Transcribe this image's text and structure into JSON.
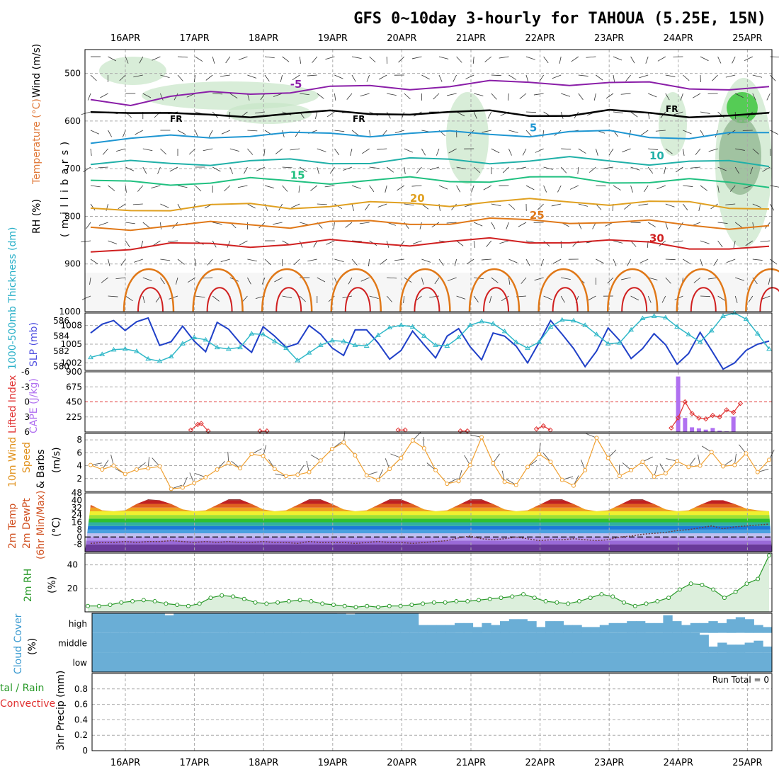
{
  "title": "GFS 0~10day 3-hourly for TAHOUA (5.25E, 15N)",
  "dates": [
    "16APR",
    "17APR",
    "18APR",
    "19APR",
    "20APR",
    "21APR",
    "22APR",
    "23APR",
    "24APR",
    "25APR"
  ],
  "colors": {
    "temp_contours": [
      "#8a1ea8",
      "#2a4ec8",
      "#1e96d2",
      "#20b0a8",
      "#20c080",
      "#e0a020",
      "#e07818",
      "#d02020"
    ],
    "slp": "#2040c8",
    "thickness": "#30b8c8",
    "lifted_index": "#e03030",
    "cape": "#b070f0",
    "wind10m": "#f0a030",
    "rh2m": "#2a9a2a",
    "cloud": "#6aaed6",
    "rh_shading": "#c8e6c8"
  },
  "chart_data": [
    {
      "id": "upper",
      "type": "area",
      "ylabel": "millibars",
      "side_labels": {
        "rh": "RH (%)",
        "temp": "Temperature (°C)",
        "wind": "Wind (m/s)"
      },
      "ylim": [
        1000,
        450
      ],
      "y_ticks": [
        500,
        600,
        700,
        800,
        900,
        1000
      ],
      "temperature_contours": [
        {
          "label": "-5",
          "level_hpa": [
            555,
            560,
            550,
            545,
            540,
            535,
            532,
            530,
            528,
            525,
            522,
            520,
            518,
            520,
            525,
            530,
            528,
            532
          ],
          "label_pos": "21APR"
        },
        {
          "label": "0 (FR)",
          "level_hpa": [
            575,
            580,
            590,
            588,
            585,
            585,
            585,
            583,
            580,
            585,
            583,
            584,
            585,
            583,
            585,
            585,
            588,
            590
          ]
        },
        {
          "label": "5",
          "level_hpa": [
            640,
            640,
            635,
            630,
            628,
            630,
            628,
            626,
            625,
            628,
            627,
            626,
            625,
            626,
            630,
            632,
            630,
            628
          ]
        },
        {
          "label": "10",
          "level_hpa": [
            690,
            690,
            688,
            686,
            686,
            686,
            685,
            684,
            683,
            684,
            683,
            682,
            682,
            684,
            685,
            686,
            690,
            692
          ]
        },
        {
          "label": "15",
          "level_hpa": [
            730,
            730,
            728,
            728,
            726,
            726,
            725,
            726,
            724,
            724,
            722,
            722,
            722,
            724,
            726,
            728,
            730,
            732
          ]
        },
        {
          "label": "20",
          "level_hpa": [
            790,
            785,
            782,
            780,
            778,
            778,
            776,
            776,
            774,
            772,
            770,
            770,
            768,
            770,
            772,
            775,
            778,
            780
          ]
        },
        {
          "label": "25",
          "level_hpa": [
            825,
            822,
            820,
            818,
            816,
            818,
            814,
            815,
            812,
            812,
            810,
            810,
            808,
            812,
            815,
            818,
            820,
            822
          ]
        },
        {
          "label": "30",
          "level_hpa": [
            870,
            865,
            862,
            860,
            858,
            858,
            856,
            856,
            855,
            855,
            852,
            852,
            850,
            855,
            858,
            862,
            866,
            870
          ]
        }
      ],
      "notes": [
        "FR"
      ]
    },
    {
      "id": "slp-thickness",
      "type": "line",
      "ylabel_left": "1000-500mb Thickness (dm)",
      "ylabel_right": "SLP (mb)",
      "thickness_ticks": [
        580,
        582,
        584,
        586
      ],
      "slp_ticks": [
        1002,
        1005,
        1008
      ],
      "thickness_lim": [
        579.5,
        587
      ],
      "series": [
        {
          "name": "SLP (mb)",
          "values": [
            1006.8,
            1008.2,
            1008.8,
            1007.2,
            1008.6,
            1009.2,
            1004.8,
            1005.4,
            1007.9,
            1005.5,
            1003.8,
            1008.5,
            1007.4,
            1005.2,
            1003.7,
            1007.8,
            1006.3,
            1004.5,
            1005.1,
            1008.0,
            1006.6,
            1004.4,
            1003.2,
            1007.3,
            1007.3,
            1005.2,
            1002.6,
            1004.0,
            1007.1,
            1004.9,
            1002.8,
            1006.3,
            1007.5,
            1004.6,
            1002.5,
            1006.8,
            1006.3,
            1004.7,
            1002.0,
            1005.3,
            1008.8,
            1006.6,
            1004.3,
            1001.4,
            1003.9,
            1007.6,
            1005.6,
            1002.7,
            1004.3,
            1006.7,
            1004.9,
            1001.8,
            1003.5,
            1006.9,
            1004.0,
            1001.0,
            1002.0,
            1004.0,
            1005.0,
            1005.5
          ],
          "axis": "right"
        },
        {
          "name": "1000-500mb Thickness (dm)",
          "values": [
            581.2,
            581.6,
            582.2,
            582.3,
            582.0,
            581.0,
            580.7,
            581.3,
            583.0,
            583.8,
            583.5,
            582.5,
            582.3,
            582.5,
            584.3,
            584.2,
            583.3,
            582.4,
            580.8,
            581.8,
            582.8,
            583.4,
            583.3,
            582.8,
            582.7,
            584.1,
            585.1,
            585.4,
            585.2,
            584.0,
            582.8,
            582.7,
            583.8,
            585.4,
            585.9,
            585.6,
            584.6,
            583.2,
            582.4,
            583.2,
            585.2,
            586.1,
            586.0,
            585.4,
            584.2,
            583.0,
            583.1,
            584.8,
            586.3,
            586.6,
            586.4,
            585.2,
            584.2,
            583.2,
            584.7,
            586.6,
            587.0,
            586.2,
            584.3,
            582.3
          ],
          "axis": "left"
        }
      ]
    },
    {
      "id": "li-cape",
      "type": "bar",
      "ylabel_left": "Lifted Index",
      "ylabel_right": "CAPE (J/kg)",
      "li_ticks": [
        -6,
        -3,
        0,
        3,
        6
      ],
      "cape_ticks": [
        225,
        450,
        675,
        900
      ],
      "li_lim": [
        6,
        -6
      ],
      "cape_lim": [
        0,
        900
      ],
      "series": [
        {
          "name": "Lifted Index",
          "segments": [
            {
              "x": [
                1.45,
                1.55,
                1.6,
                1.7
              ],
              "values": [
                5.6,
                4.5,
                4.3,
                5.8
              ]
            },
            {
              "x": [
                2.45,
                2.55
              ],
              "values": [
                5.8,
                5.8
              ]
            },
            {
              "x": [
                4.45,
                4.55
              ],
              "values": [
                5.6,
                5.6
              ]
            },
            {
              "x": [
                5.35,
                5.45
              ],
              "values": [
                5.8,
                5.8
              ]
            },
            {
              "x": [
                6.45,
                6.55,
                6.65
              ],
              "values": [
                5.4,
                4.8,
                5.6
              ]
            },
            {
              "x": [
                8.4,
                8.5,
                8.6,
                8.7,
                8.8,
                8.9,
                9.0,
                9.1,
                9.2,
                9.3,
                9.4
              ],
              "values": [
                5.2,
                3.2,
                0.0,
                2.3,
                3.2,
                3.4,
                2.7,
                3.0,
                1.6,
                2.1,
                0.3
              ]
            }
          ]
        },
        {
          "name": "CAPE (J/kg)",
          "x": [
            8.5,
            8.6,
            8.7,
            8.8,
            8.9,
            9.0,
            9.1,
            9.2,
            9.3
          ],
          "values": [
            830,
            210,
            70,
            55,
            35,
            60,
            20,
            10,
            230
          ]
        }
      ]
    },
    {
      "id": "wind10m",
      "type": "line",
      "ylabel": "10m Wind Speed & Barbs (m/s)",
      "ylim": [
        0,
        9
      ],
      "y_ticks": [
        2,
        4,
        6,
        8
      ],
      "series": [
        {
          "name": "Speed",
          "values": [
            4.1,
            3.4,
            4.0,
            2.7,
            3.4,
            3.6,
            3.9,
            0.4,
            0.6,
            1.3,
            2.2,
            3.4,
            4.4,
            3.6,
            5.8,
            5.5,
            3.5,
            2.4,
            2.6,
            3.0,
            4.8,
            6.6,
            7.6,
            5.6,
            2.5,
            1.8,
            3.5,
            5.2,
            7.9,
            6.7,
            3.3,
            1.2,
            1.6,
            4.1,
            8.4,
            4.4,
            1.5,
            1.0,
            3.8,
            5.8,
            4.6,
            1.8,
            0.9,
            3.3,
            8.3,
            5.2,
            2.4,
            3.3,
            4.6,
            2.3,
            2.8,
            4.7,
            3.8,
            4.0,
            6.1,
            3.9,
            4.1,
            5.9,
            3.0,
            4.9
          ]
        }
      ]
    },
    {
      "id": "temp2m",
      "type": "area",
      "ylabel": "2m Temp 2m DewPt (6hr Min/Max) (°C)",
      "ylim": [
        -16,
        48
      ],
      "y_ticks": [
        -8,
        0,
        8,
        16,
        24,
        32,
        40,
        48
      ],
      "series": [
        {
          "name": "2m Temp",
          "values": [
            35,
            29,
            28,
            29,
            36,
            41,
            40,
            36,
            30,
            28,
            29,
            35,
            41,
            41,
            36,
            30,
            28,
            29,
            35,
            41,
            41,
            36,
            30,
            28,
            29,
            35,
            41,
            41,
            36,
            30,
            28,
            29,
            35,
            41,
            41,
            36,
            30,
            28,
            29,
            35,
            41,
            41,
            36,
            30,
            28,
            29,
            35,
            41,
            41,
            36,
            30,
            28,
            29,
            35,
            40,
            40,
            36,
            31,
            29,
            28
          ]
        },
        {
          "name": "2m DewPt",
          "values": [
            -7,
            -6,
            -6,
            -5,
            -6,
            -5,
            -5,
            -4,
            -5,
            -6,
            -5,
            -6,
            -5,
            -6,
            -6,
            -5,
            -6,
            -6,
            -7,
            -5,
            -6,
            -6,
            -6,
            -7,
            -6,
            -5,
            -6,
            -6,
            -7,
            -6,
            -5,
            -4,
            -1,
            1,
            -2,
            -3,
            -2,
            0,
            -2,
            -4,
            -3,
            -3,
            -2,
            -3,
            -4,
            -3,
            0,
            1,
            3,
            4,
            5,
            7,
            8,
            10,
            12,
            9,
            11,
            12,
            13,
            14
          ]
        }
      ]
    },
    {
      "id": "rh2m",
      "type": "area",
      "ylabel": "2m RH (%)",
      "ylim": [
        0,
        50
      ],
      "y_ticks": [
        20,
        40
      ],
      "series": [
        {
          "name": "2m RH",
          "values": [
            5,
            5,
            6,
            8,
            9,
            10,
            9,
            7,
            6,
            5,
            7,
            12,
            14,
            13,
            11,
            8,
            7,
            8,
            9,
            10,
            9,
            7,
            6,
            5,
            4,
            5,
            4,
            5,
            5,
            6,
            7,
            8,
            8,
            9,
            9,
            10,
            11,
            12,
            13,
            15,
            12,
            9,
            8,
            7,
            9,
            12,
            15,
            13,
            8,
            5,
            7,
            9,
            12,
            19,
            24,
            23,
            19,
            12,
            17,
            24,
            28,
            48
          ]
        }
      ]
    },
    {
      "id": "cloud",
      "type": "heatmap",
      "ylabel": "Cloud Cover (%)",
      "layers": [
        "high",
        "middle",
        "low"
      ],
      "series": [
        {
          "name": "high",
          "values": [
            1,
            1,
            1,
            1,
            1,
            1,
            1,
            1,
            0.9,
            1,
            1,
            1,
            1,
            1,
            1,
            1,
            1,
            1,
            1,
            1,
            1,
            1,
            1,
            1,
            1,
            1,
            1,
            0.98,
            0.95,
            1,
            1,
            1,
            1,
            1,
            1,
            1,
            0.4,
            0.4,
            0.4,
            0.4,
            0.5,
            0.5,
            0.3,
            0.5,
            0.4,
            0.6,
            0.7,
            0.7,
            0.6,
            0.3,
            0.6,
            0.6,
            0.4,
            0.4,
            0.3,
            0.3,
            0.4,
            0.5,
            0.5,
            0.6,
            0.6,
            0.5,
            0.5,
            0.9,
            0.6,
            0.4,
            0.5,
            0.5,
            0.6,
            0.5,
            0.7,
            0.8,
            0.7,
            0.4,
            0.3
          ]
        },
        {
          "name": "middle",
          "values": [
            1,
            1,
            1,
            1,
            1,
            1,
            1,
            1,
            1,
            1,
            1,
            1,
            1,
            1,
            1,
            1,
            1,
            1,
            1,
            1,
            1,
            1,
            1,
            1,
            1,
            1,
            1,
            1,
            1,
            1,
            1,
            1,
            1,
            1,
            1,
            1,
            1,
            1,
            1,
            1,
            1,
            1,
            1,
            1,
            1,
            1,
            1,
            1,
            1,
            1,
            1,
            1,
            1,
            1,
            1,
            1,
            1,
            1,
            1,
            1,
            1,
            1,
            1,
            1,
            1,
            1,
            1,
            0.9,
            0.3,
            0.5,
            0.4,
            0.4,
            0.5,
            0.6,
            0.3
          ]
        },
        {
          "name": "low",
          "values": [
            1,
            1,
            1,
            1,
            1,
            1,
            1,
            1,
            1,
            1,
            1,
            1,
            1,
            1,
            1,
            1,
            1,
            1,
            1,
            1,
            1,
            1,
            1,
            1,
            1,
            1,
            1,
            1,
            1,
            1,
            1,
            1,
            1,
            1,
            1,
            1,
            1,
            1,
            1,
            1,
            1,
            1,
            1,
            1,
            1,
            1,
            1,
            1,
            1,
            1,
            1,
            1,
            1,
            1,
            1,
            1,
            1,
            1,
            1,
            1,
            1,
            1,
            1,
            1,
            1,
            1,
            1,
            1,
            1,
            1,
            1,
            1,
            1,
            1,
            1
          ]
        }
      ]
    },
    {
      "id": "precip",
      "type": "bar",
      "ylabel": "3hr Precip (mm)",
      "legend_left": [
        "Total / Rain",
        "Convective"
      ],
      "ylim": [
        0,
        1.0
      ],
      "y_ticks": [
        0,
        0.2,
        0.4,
        0.6,
        0.8
      ],
      "annotation": "Run Total = 0",
      "series": [
        {
          "name": "Total / Rain",
          "values": []
        }
      ]
    }
  ],
  "labels": {
    "upper_rh": "RH (%)",
    "upper_temp": "Temperature (°C)",
    "upper_wind": "Wind (m/s)",
    "upper_mb": "( m i l l i b a r s )",
    "thick": "1000-500mb Thickness (dm)",
    "slp": "SLP (mb)",
    "li": "Lifted Index",
    "cape": "CAPE (J/kg)",
    "wind10m_a": "10m Wind",
    "wind10m_b": "Speed",
    "wind10m_c": "& Barbs",
    "wind10m_unit": "(m/s)",
    "t2m_a": "2m Temp",
    "t2m_b": "2m DewPt",
    "t2m_c": "(6hr Min/Max)",
    "t2m_unit": "(°C)",
    "rh2m": "2m RH",
    "rh2m_unit": "(%)",
    "cloud": "Cloud Cover",
    "cloud_unit": "(%)",
    "precip": "3hr Precip (mm)",
    "total_rain": "tal / Rain",
    "convective": "Convective",
    "run_total": "Run Total = 0",
    "fr": "FR"
  }
}
